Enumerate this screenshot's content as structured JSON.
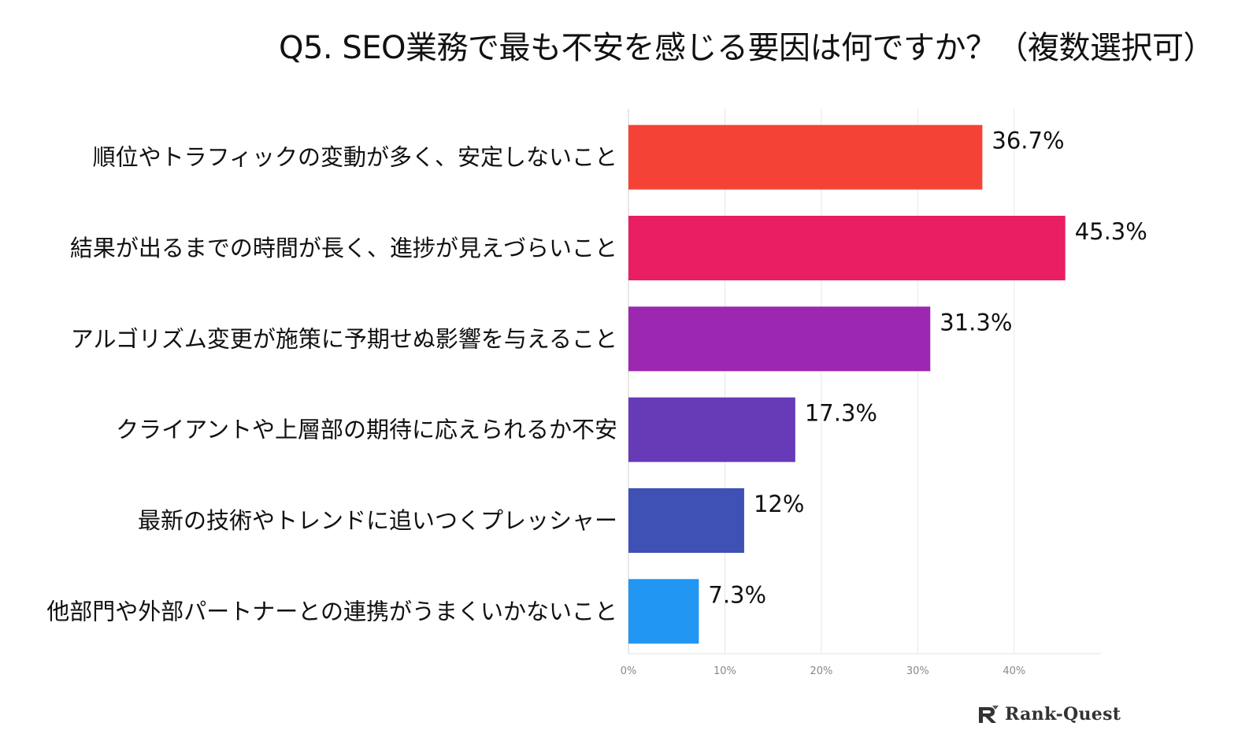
{
  "chart_data": {
    "type": "bar",
    "orientation": "horizontal",
    "title": "Q5. SEO業務で最も不安を感じる要因は何ですか？（複数選択可）",
    "categories": [
      "順位やトラフィックの変動が多く、安定しないこと",
      "結果が出るまでの時間が長く、進捗が見えづらいこと",
      "アルゴリズム変更が施策に予期せぬ影響を与えること",
      "クライアントや上層部の期待に応えられるか不安",
      "最新の技術やトレンドに追いつくプレッシャー",
      "他部門や外部パートナーとの連携がうまくいかないこと"
    ],
    "values": [
      36.7,
      45.3,
      31.3,
      17.3,
      12,
      7.3
    ],
    "data_labels": [
      "36.7%",
      "45.3%",
      "31.3%",
      "17.3%",
      "12%",
      "7.3%"
    ],
    "colors": [
      "#F44336",
      "#E91E63",
      "#9C27B0",
      "#673AB7",
      "#3F51B5",
      "#2196F3"
    ],
    "x_ticks": [
      0,
      10,
      20,
      30,
      40
    ],
    "x_tick_labels": [
      "0%",
      "10%",
      "20%",
      "30%",
      "40%"
    ],
    "xlim": [
      0,
      49
    ],
    "grid": true,
    "gridline_color": "#e6e6e6"
  },
  "brand": {
    "name": "Rank-Quest",
    "icon": "rank-quest-logo-icon"
  }
}
